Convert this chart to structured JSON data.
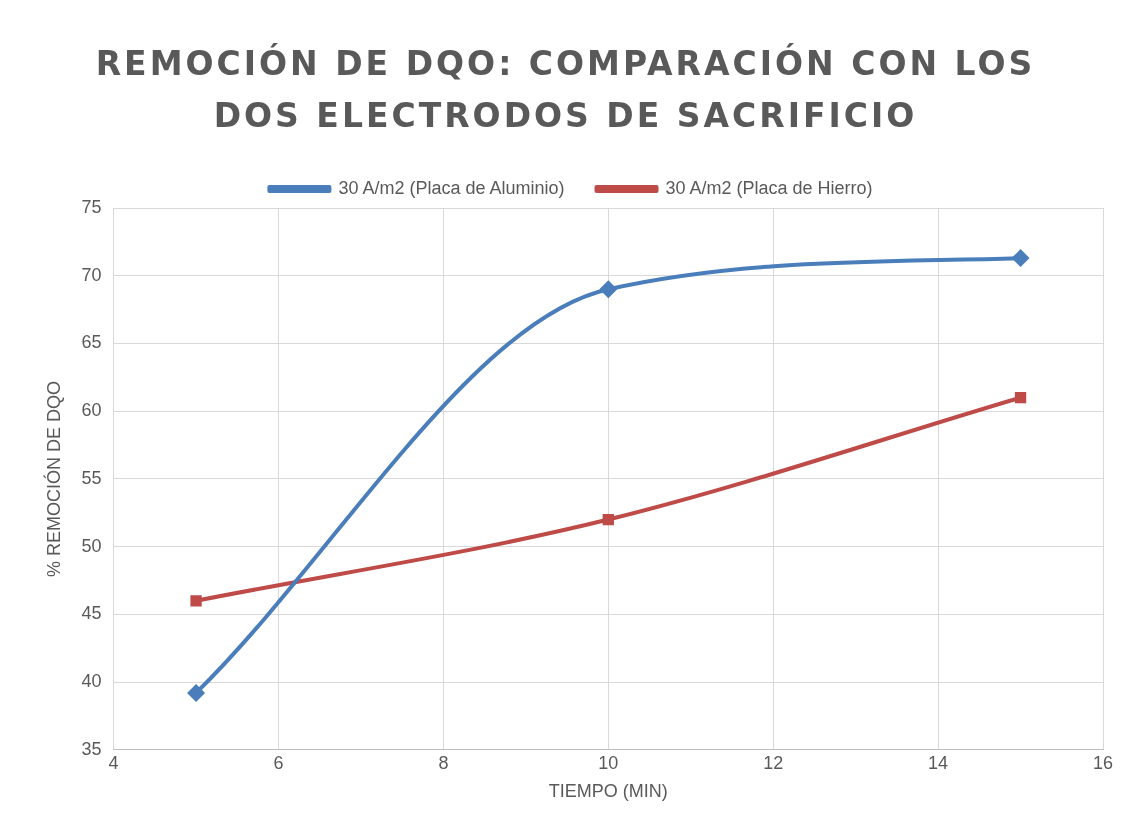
{
  "chart_data": {
    "type": "line",
    "title": "REMOCIÓN DE DQO: COMPARACIÓN CON LOS DOS ELECTRODOS DE SACRIFICIO",
    "xlabel": "TIEMPO (MIN)",
    "ylabel": "% REMOCIÓN DE DQO",
    "x": [
      5,
      10,
      15
    ],
    "series": [
      {
        "name": "30 A/m2 (Placa de Aluminio)",
        "color": "#4a7ebb",
        "marker": "diamond",
        "values": [
          39.2,
          69,
          71.3
        ]
      },
      {
        "name": "30 A/m2 (Placa de Hierro)",
        "color": "#be4b48",
        "marker": "square",
        "values": [
          46,
          52,
          61
        ]
      }
    ],
    "xlim": [
      4,
      16
    ],
    "xticks": [
      4,
      6,
      8,
      10,
      12,
      14,
      16
    ],
    "ylim": [
      35,
      75
    ],
    "yticks": [
      35,
      40,
      45,
      50,
      55,
      60,
      65,
      70,
      75
    ],
    "grid": true,
    "legend": "top"
  }
}
